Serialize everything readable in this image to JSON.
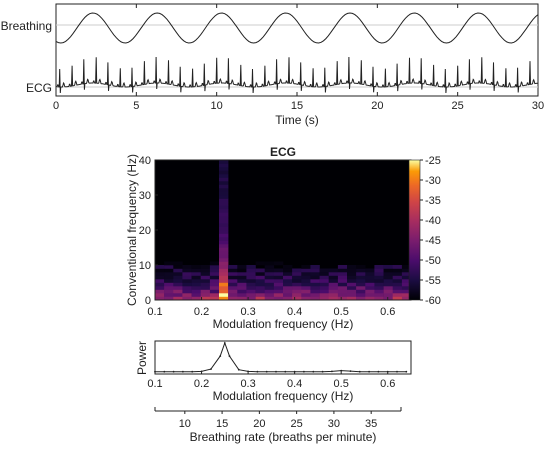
{
  "chart_data": [
    {
      "type": "line",
      "title": "",
      "xlabel": "Time (s)",
      "ylabel": "",
      "xlim": [
        0,
        30
      ],
      "xticks": [
        0,
        5,
        10,
        15,
        20,
        25,
        30
      ],
      "grid": false,
      "series": [
        {
          "name": "Breathing",
          "description_free": true,
          "period_s": 4.0,
          "phase_s": 1.3,
          "samples": 200
        },
        {
          "name": "ECG",
          "beat_interval_s": 0.75,
          "samples": 900
        }
      ]
    },
    {
      "type": "heatmap",
      "title": "ECG",
      "xlabel": "Modulation frequency (Hz)",
      "ylabel": "Conventional frequency (Hz)",
      "xlim": [
        0.1,
        0.65
      ],
      "ylim": [
        0,
        40
      ],
      "xticks": [
        0.1,
        0.2,
        0.3,
        0.4,
        0.5,
        0.6
      ],
      "yticks": [
        0,
        10,
        20,
        30,
        40
      ],
      "colorbar": {
        "min": -60,
        "max": -25,
        "ticks": [
          -25,
          -30,
          -35,
          -40,
          -45,
          -50,
          -55,
          -60
        ]
      },
      "peaks": [
        {
          "mod_freq": 0.25,
          "conv_freq_max": 30,
          "power_db": -27
        },
        {
          "mod_freq": 0.5,
          "conv_freq_max": 12,
          "power_db": -40
        }
      ]
    },
    {
      "type": "line",
      "title": "",
      "xlabel": "Modulation frequency (Hz)",
      "ylabel": "Power",
      "xlim": [
        0.1,
        0.65
      ],
      "xticks": [
        0.1,
        0.2,
        0.3,
        0.4,
        0.5,
        0.6
      ],
      "series": [
        {
          "name": "",
          "x": [
            0.1,
            0.12,
            0.14,
            0.16,
            0.18,
            0.2,
            0.22,
            0.24,
            0.25,
            0.26,
            0.28,
            0.3,
            0.32,
            0.34,
            0.36,
            0.38,
            0.4,
            0.42,
            0.44,
            0.46,
            0.48,
            0.5,
            0.52,
            0.54,
            0.56,
            0.58,
            0.6,
            0.62,
            0.64
          ],
          "y": [
            0.01,
            0.01,
            0.01,
            0.01,
            0.01,
            0.02,
            0.1,
            0.55,
            1.0,
            0.55,
            0.08,
            0.02,
            0.01,
            0.01,
            0.01,
            0.01,
            0.01,
            0.01,
            0.01,
            0.01,
            0.02,
            0.05,
            0.03,
            0.01,
            0.01,
            0.01,
            0.01,
            0.01,
            0.01
          ]
        }
      ]
    },
    {
      "type": "axis",
      "xlabel": "Breathing rate (breaths per minute)",
      "xlim": [
        6,
        39
      ],
      "xticks": [
        10,
        15,
        20,
        25,
        30,
        35
      ]
    }
  ]
}
